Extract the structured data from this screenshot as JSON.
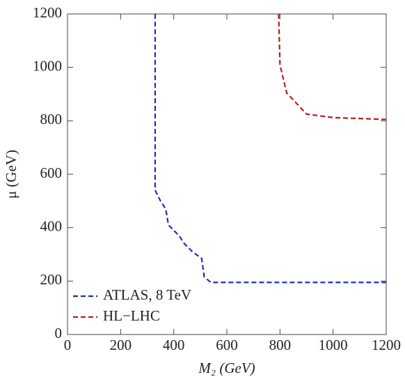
{
  "chart_data": {
    "type": "line",
    "xlabel": "M₂ (GeV)",
    "ylabel": "μ (GeV)",
    "xlim": [
      0,
      1200
    ],
    "ylim": [
      0,
      1200
    ],
    "xticks": [
      0,
      200,
      400,
      600,
      800,
      1000,
      1200
    ],
    "yticks": [
      0,
      200,
      400,
      600,
      800,
      1000,
      1200
    ],
    "legend": "lower left",
    "series": [
      {
        "name": "ATLAS, 8 TeV",
        "color": "#1f2fb8",
        "x": [
          330,
          330,
          350,
          370,
          380,
          420,
          440,
          470,
          505,
          515,
          540,
          1200
        ],
        "values": [
          1200,
          540,
          500,
          470,
          410,
          370,
          340,
          310,
          285,
          215,
          195,
          195
        ]
      },
      {
        "name": "HL−LHC",
        "color": "#b81c1c",
        "x": [
          795,
          800,
          825,
          900,
          1000,
          1200
        ],
        "values": [
          1200,
          1010,
          905,
          825,
          812,
          805
        ]
      }
    ]
  }
}
